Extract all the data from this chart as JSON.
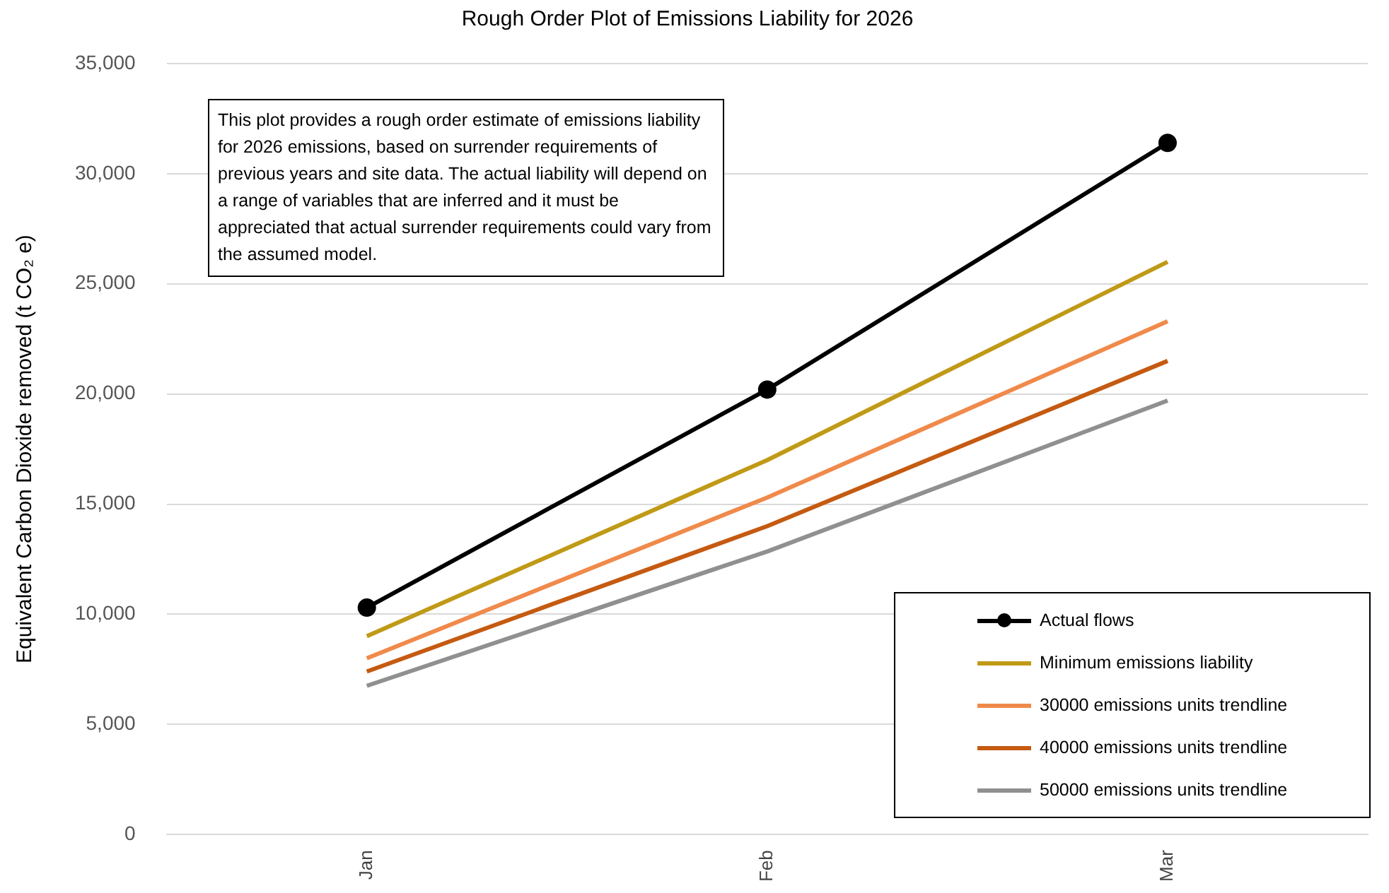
{
  "chart_data": {
    "type": "line",
    "title": "Rough Order Plot of Emissions Liability for 2026",
    "ylabel": "Equivalent Carbon Dioxide removed (t CO₂ e)",
    "categories": [
      "Jan",
      "Feb",
      "Mar"
    ],
    "series": [
      {
        "name": "Actual flows",
        "color": "#000000",
        "values": [
          10300,
          20200,
          31400
        ],
        "marker": "circle"
      },
      {
        "name": "Minimum emissions liability",
        "color": "#c09a17",
        "values": [
          9000,
          17000,
          26000
        ],
        "marker": "none"
      },
      {
        "name": "30000 emissions units trendline",
        "color": "#f08a4b",
        "values": [
          8000,
          15300,
          23300
        ],
        "marker": "none"
      },
      {
        "name": "40000 emissions units trendline",
        "color": "#c55a11",
        "values": [
          7400,
          14000,
          21500
        ],
        "marker": "none"
      },
      {
        "name": "50000 emissions units trendline",
        "color": "#909090",
        "values": [
          6750,
          12850,
          19700
        ],
        "marker": "none"
      }
    ],
    "ylim": [
      0,
      35000
    ],
    "yticks": [
      0,
      {
        "value": 5000,
        "label": "5,000"
      },
      {
        "value": 10000,
        "label": "10,000"
      },
      {
        "value": 15000,
        "label": "15,000"
      },
      {
        "value": 20000,
        "label": "20,000"
      },
      {
        "value": 25000,
        "label": "25,000"
      },
      {
        "value": 30000,
        "label": "30,000"
      },
      {
        "value": 35000,
        "label": "35,000"
      }
    ],
    "grid": "y",
    "legend": "bottom right",
    "annotations": [
      "This plot provides a rough order estimate of emissions liability for 2026 emissions, based on surrender requirements of previous years and site data. The actual liability will depend on a range of variables that are inferred and it must be appreciated that actual surrender requirements could vary from the assumed model."
    ]
  }
}
